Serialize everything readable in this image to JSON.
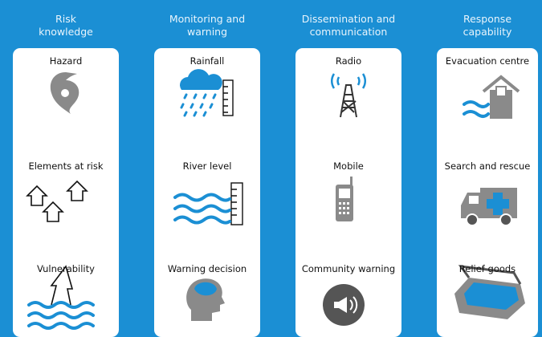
{
  "columns": [
    {
      "header": [
        "Risk",
        "knowledge"
      ],
      "items": [
        "Hazard",
        "Elements at risk",
        "Vulnerability"
      ]
    },
    {
      "header": [
        "Monitoring and",
        "warning"
      ],
      "items": [
        "Rainfall",
        "River level",
        "Warning decision"
      ]
    },
    {
      "header": [
        "Dissemination and",
        "communication"
      ],
      "items": [
        "Radio",
        "Mobile",
        "Community warning"
      ]
    },
    {
      "header": [
        "Response",
        "capability"
      ],
      "items": [
        "Evacuation centre",
        "Search and rescue",
        "Relief goods"
      ]
    }
  ]
}
